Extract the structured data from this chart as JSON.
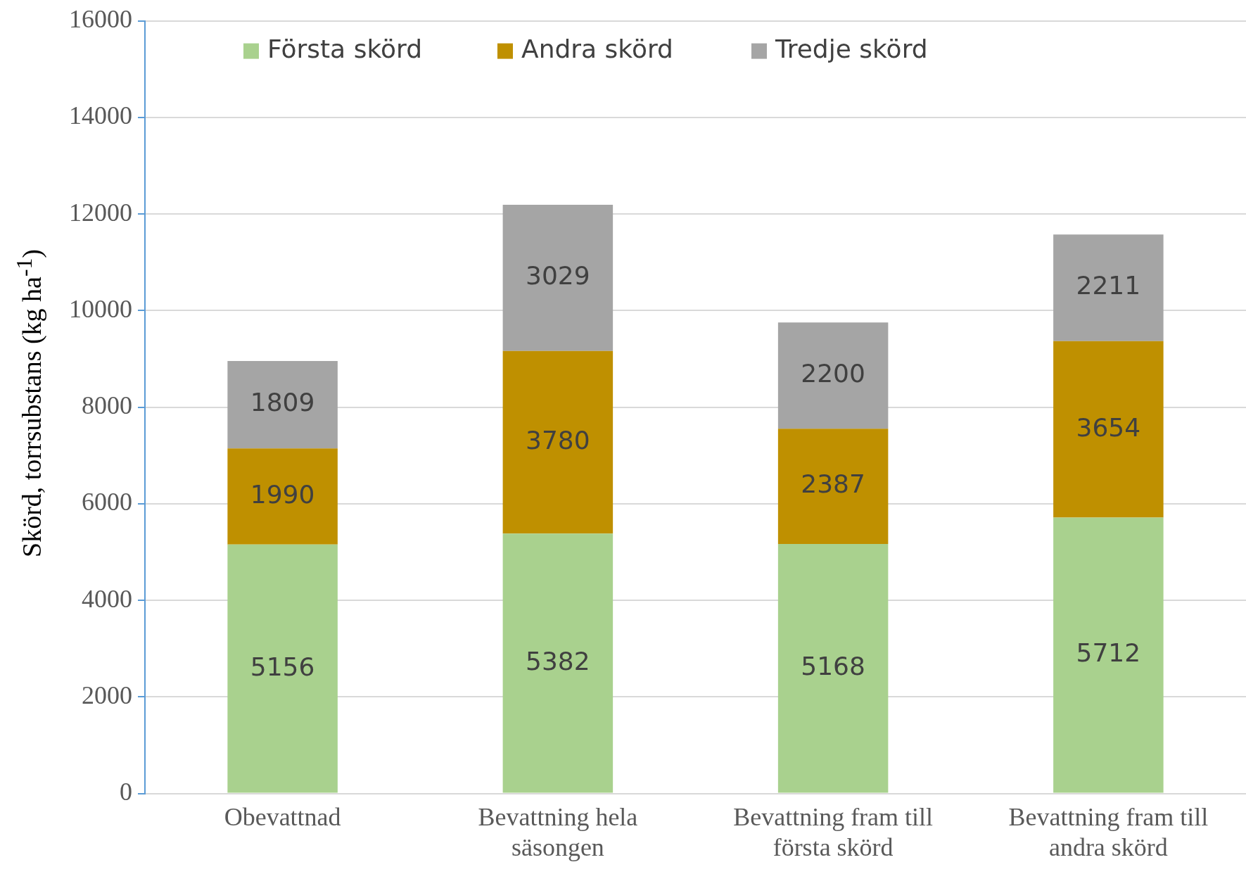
{
  "chart_data": {
    "type": "bar",
    "stacked": true,
    "ylabel": "Skörd, torrsubstans (kg ha$^{-1}$)",
    "categories": [
      "Obevattnad",
      "Bevattning hela säsongen",
      "Bevattning fram till första skörd",
      "Bevattning fram till andra skörd"
    ],
    "series": [
      {
        "name": "Första skörd",
        "color": "#a9d18e",
        "values": [
          5156,
          5382,
          5168,
          5712
        ]
      },
      {
        "name": "Andra skörd",
        "color": "#bf9000",
        "values": [
          1990,
          3780,
          2387,
          3654
        ]
      },
      {
        "name": "Tredje skörd",
        "color": "#a5a5a5",
        "values": [
          1809,
          3029,
          2200,
          2211
        ]
      }
    ],
    "ylim": [
      0,
      16000
    ],
    "yticks": [
      0,
      2000,
      4000,
      6000,
      8000,
      10000,
      12000,
      14000,
      16000
    ],
    "grid": "y",
    "legend": "top",
    "data_labels": true
  }
}
